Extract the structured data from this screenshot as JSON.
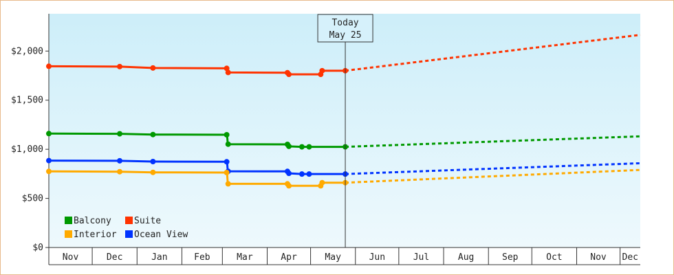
{
  "chart_data": {
    "type": "line",
    "title": "",
    "xlabel": "",
    "ylabel": "",
    "y_tick_labels": [
      "$0",
      "$500",
      "$1,000",
      "$1,500",
      "$2,000"
    ],
    "y_ticks": [
      0,
      500,
      1000,
      1500,
      2000
    ],
    "ylim": [
      0,
      2380
    ],
    "x_tick_labels": [
      "Nov",
      "Dec",
      "Jan",
      "Feb",
      "Mar",
      "Apr",
      "May",
      "Jun",
      "Jul",
      "Aug",
      "Sep",
      "Oct",
      "Nov",
      "Dec"
    ],
    "xlim": [
      "2024-11-01",
      "2025-12-15"
    ],
    "today": {
      "line1": "Today",
      "line2": "May 25",
      "date": "2025-05-25"
    },
    "legend_position": "bottom-left",
    "grid": false,
    "background_gradient": [
      "#cdeef9",
      "#eef9fd"
    ],
    "series": [
      {
        "name": "Suite",
        "color": "#ff3300",
        "points": [
          [
            "2024-11-01",
            1845
          ],
          [
            "2024-12-20",
            1842
          ],
          [
            "2025-01-12",
            1828
          ],
          [
            "2025-03-04",
            1824
          ],
          [
            "2025-03-05",
            1782
          ],
          [
            "2025-04-15",
            1780
          ],
          [
            "2025-04-16",
            1763
          ],
          [
            "2025-05-08",
            1763
          ],
          [
            "2025-05-09",
            1800
          ],
          [
            "2025-05-25",
            1800
          ]
        ],
        "projection": [
          [
            "2025-05-25",
            1800
          ],
          [
            "2025-12-15",
            2165
          ]
        ]
      },
      {
        "name": "Balcony",
        "color": "#009900",
        "points": [
          [
            "2024-11-01",
            1160
          ],
          [
            "2024-12-20",
            1158
          ],
          [
            "2025-01-12",
            1150
          ],
          [
            "2025-03-04",
            1148
          ],
          [
            "2025-03-05",
            1052
          ],
          [
            "2025-04-15",
            1050
          ],
          [
            "2025-04-16",
            1030
          ],
          [
            "2025-04-25",
            1025
          ],
          [
            "2025-04-30",
            1025
          ],
          [
            "2025-05-25",
            1025
          ]
        ],
        "projection": [
          [
            "2025-05-25",
            1025
          ],
          [
            "2025-12-15",
            1132
          ]
        ]
      },
      {
        "name": "Ocean View",
        "color": "#0033ff",
        "points": [
          [
            "2024-11-01",
            885
          ],
          [
            "2024-12-20",
            883
          ],
          [
            "2025-01-12",
            875
          ],
          [
            "2025-03-04",
            873
          ],
          [
            "2025-03-05",
            776
          ],
          [
            "2025-04-15",
            775
          ],
          [
            "2025-04-16",
            755
          ],
          [
            "2025-04-25",
            748
          ],
          [
            "2025-04-30",
            748
          ],
          [
            "2025-05-25",
            748
          ]
        ],
        "projection": [
          [
            "2025-05-25",
            748
          ],
          [
            "2025-12-15",
            858
          ]
        ]
      },
      {
        "name": "Interior",
        "color": "#ffaa00",
        "points": [
          [
            "2024-11-01",
            775
          ],
          [
            "2024-12-20",
            772
          ],
          [
            "2025-01-12",
            765
          ],
          [
            "2025-03-04",
            763
          ],
          [
            "2025-03-05",
            648
          ],
          [
            "2025-04-15",
            648
          ],
          [
            "2025-04-16",
            628
          ],
          [
            "2025-05-08",
            628
          ],
          [
            "2025-05-09",
            660
          ],
          [
            "2025-05-25",
            660
          ]
        ],
        "projection": [
          [
            "2025-05-25",
            660
          ],
          [
            "2025-12-15",
            790
          ]
        ]
      }
    ],
    "legend": [
      {
        "name": "Balcony",
        "color": "#009900"
      },
      {
        "name": "Suite",
        "color": "#ff3300"
      },
      {
        "name": "Interior",
        "color": "#ffaa00"
      },
      {
        "name": "Ocean View",
        "color": "#0033ff"
      }
    ]
  }
}
